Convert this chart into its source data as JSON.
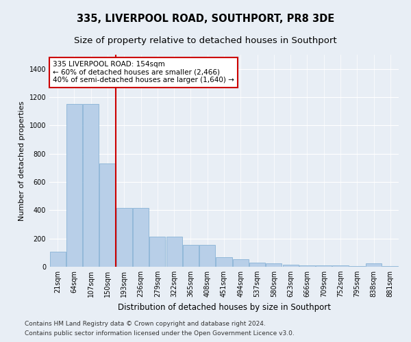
{
  "title": "335, LIVERPOOL ROAD, SOUTHPORT, PR8 3DE",
  "subtitle": "Size of property relative to detached houses in Southport",
  "xlabel": "Distribution of detached houses by size in Southport",
  "ylabel": "Number of detached properties",
  "categories": [
    "21sqm",
    "64sqm",
    "107sqm",
    "150sqm",
    "193sqm",
    "236sqm",
    "279sqm",
    "322sqm",
    "365sqm",
    "408sqm",
    "451sqm",
    "494sqm",
    "537sqm",
    "580sqm",
    "623sqm",
    "666sqm",
    "709sqm",
    "752sqm",
    "795sqm",
    "838sqm",
    "881sqm"
  ],
  "values": [
    105,
    1150,
    1150,
    730,
    415,
    415,
    215,
    215,
    155,
    155,
    70,
    55,
    30,
    25,
    15,
    12,
    12,
    8,
    3,
    22,
    5
  ],
  "bar_color": "#b8cfe8",
  "bar_edge_color": "#7aaad0",
  "subject_bar_index": 3,
  "annotation_text": "335 LIVERPOOL ROAD: 154sqm\n← 60% of detached houses are smaller (2,466)\n40% of semi-detached houses are larger (1,640) →",
  "annotation_box_color": "#ffffff",
  "annotation_box_edge": "#cc0000",
  "red_line_color": "#cc0000",
  "footer_line1": "Contains HM Land Registry data © Crown copyright and database right 2024.",
  "footer_line2": "Contains public sector information licensed under the Open Government Licence v3.0.",
  "ylim": [
    0,
    1500
  ],
  "yticks": [
    0,
    200,
    400,
    600,
    800,
    1000,
    1200,
    1400
  ],
  "bg_color": "#e8eef5",
  "plot_bg_color": "#e8eef5",
  "title_fontsize": 10.5,
  "subtitle_fontsize": 9.5,
  "tick_fontsize": 7,
  "ylabel_fontsize": 8,
  "xlabel_fontsize": 8.5,
  "footer_fontsize": 6.5
}
